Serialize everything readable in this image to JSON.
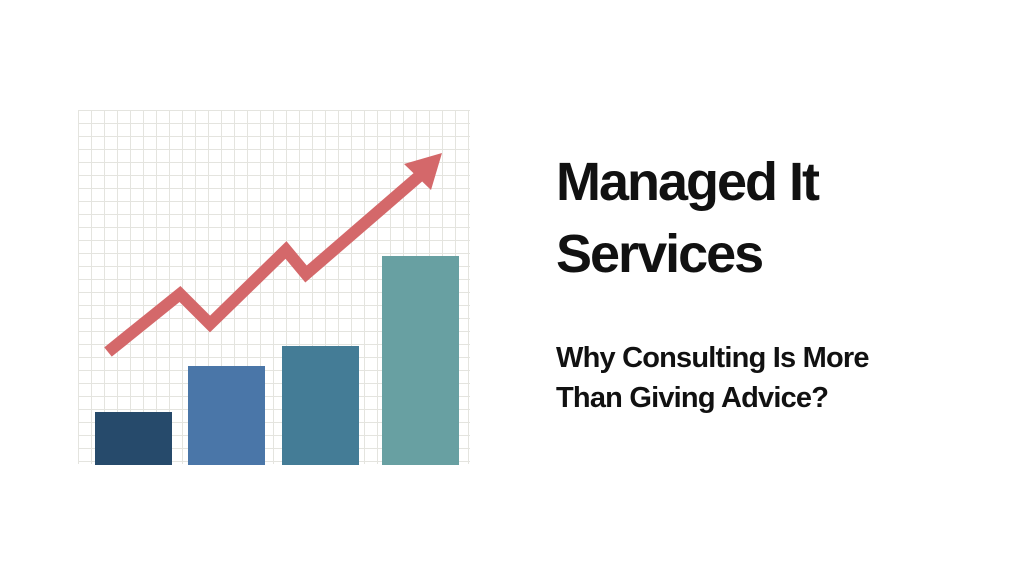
{
  "title": "Managed It Services",
  "subtitle": "Why Consulting Is More Than Giving Advice?"
}
